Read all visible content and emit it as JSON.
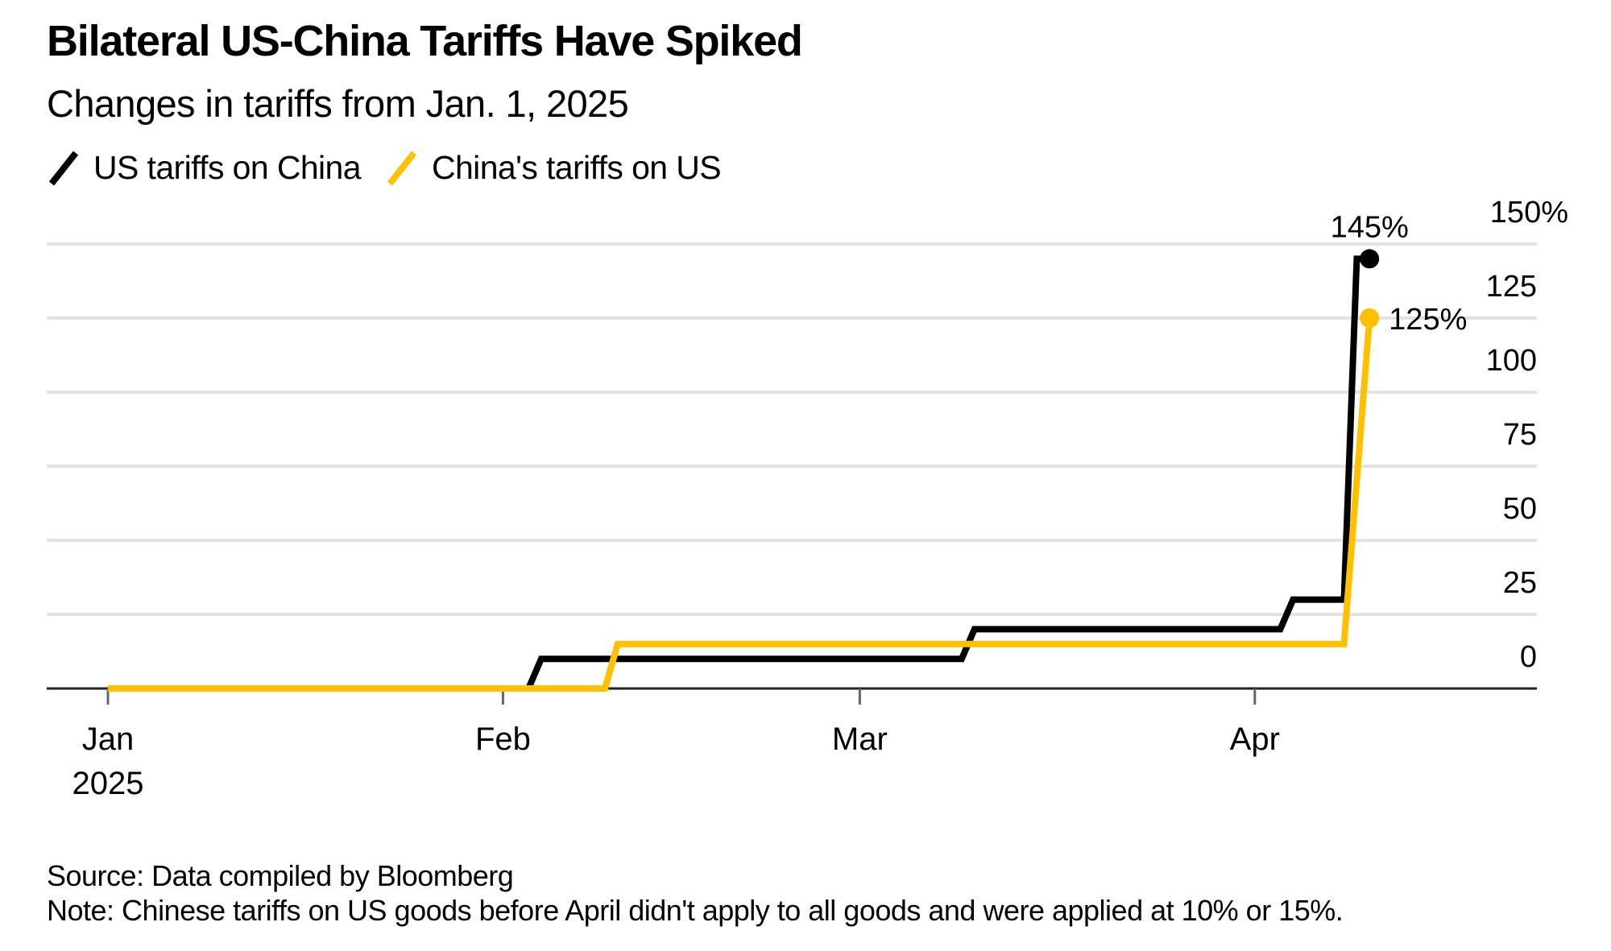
{
  "chart_data": {
    "type": "line",
    "title": "Bilateral US-China Tariffs Have Spiked",
    "subtitle": "Changes in tariffs from Jan. 1, 2025",
    "xlabel": "",
    "ylabel": "",
    "x_axis": {
      "type": "date",
      "range": [
        "2025-01-01",
        "2025-04-20"
      ],
      "ticks": [
        {
          "date": "2025-01-01",
          "label": "Jan",
          "sublabel": "2025"
        },
        {
          "date": "2025-02-01",
          "label": "Feb",
          "sublabel": ""
        },
        {
          "date": "2025-03-01",
          "label": "Mar",
          "sublabel": ""
        },
        {
          "date": "2025-04-01",
          "label": "Apr",
          "sublabel": ""
        }
      ]
    },
    "y_axis": {
      "range": [
        0,
        150
      ],
      "position": "right",
      "ticks": [
        {
          "value": 0,
          "label": "0"
        },
        {
          "value": 25,
          "label": "25"
        },
        {
          "value": 50,
          "label": "50"
        },
        {
          "value": 75,
          "label": "75"
        },
        {
          "value": 100,
          "label": "100"
        },
        {
          "value": 125,
          "label": "125"
        },
        {
          "value": 150,
          "label": "150%"
        }
      ],
      "grid": true
    },
    "legend": {
      "placement": "top-left",
      "entries": [
        {
          "name": "US tariffs on China",
          "color": "#000000"
        },
        {
          "name": "China's tariffs on US",
          "color": "#ffc000"
        }
      ]
    },
    "series": [
      {
        "name": "US tariffs on China",
        "color": "#000000",
        "points": [
          {
            "date": "2025-01-01",
            "value": 0
          },
          {
            "date": "2025-02-03",
            "value": 0
          },
          {
            "date": "2025-02-04",
            "value": 10
          },
          {
            "date": "2025-03-09",
            "value": 10
          },
          {
            "date": "2025-03-10",
            "value": 20
          },
          {
            "date": "2025-04-03",
            "value": 20
          },
          {
            "date": "2025-04-04",
            "value": 30
          },
          {
            "date": "2025-04-08",
            "value": 30
          },
          {
            "date": "2025-04-09",
            "value": 145
          },
          {
            "date": "2025-04-10",
            "value": 145
          }
        ],
        "end_label": "145%"
      },
      {
        "name": "China's tariffs on US",
        "color": "#ffc000",
        "points": [
          {
            "date": "2025-01-01",
            "value": 0
          },
          {
            "date": "2025-02-09",
            "value": 0
          },
          {
            "date": "2025-02-10",
            "value": 15
          },
          {
            "date": "2025-04-08",
            "value": 15
          },
          {
            "date": "2025-04-10",
            "value": 125
          }
        ],
        "end_label": "125%"
      }
    ],
    "source": "Source: Data compiled by Bloomberg",
    "note": "Note: Chinese tariffs on US goods before April didn't apply to all goods and were applied at 10% or 15%."
  }
}
